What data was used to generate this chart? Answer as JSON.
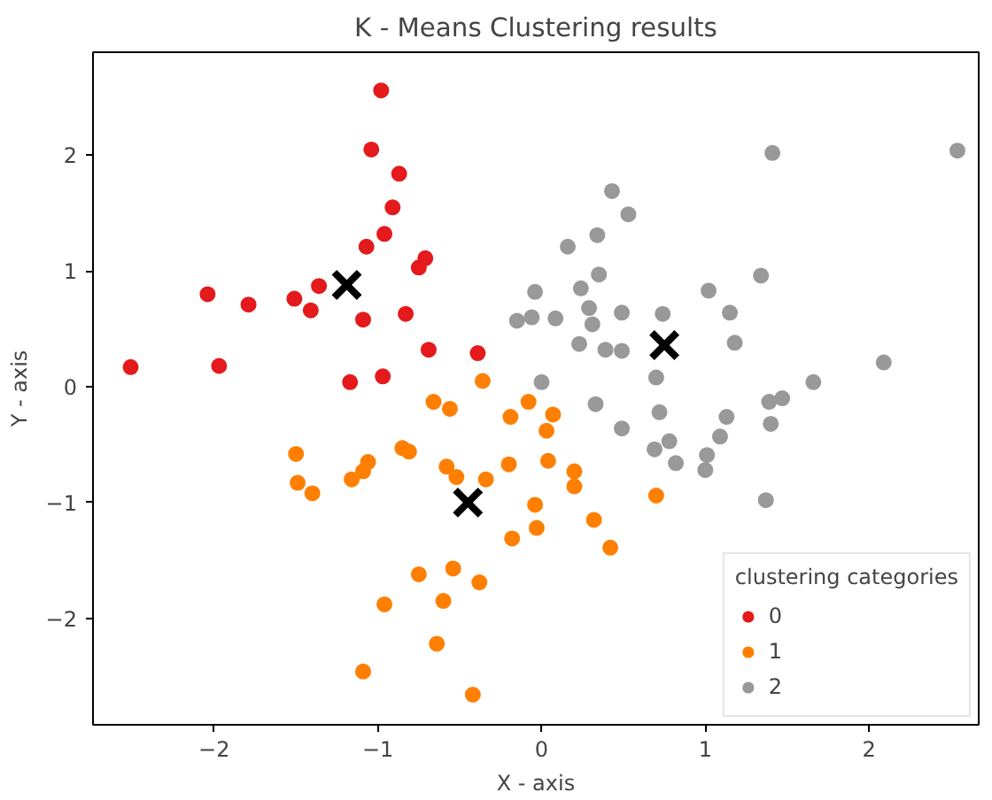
{
  "chart_data": {
    "type": "scatter",
    "title": "K - Means Clustering results",
    "xlabel": "X - axis",
    "ylabel": "Y - axis",
    "legend_title": "clustering categories",
    "legend": "bottom right",
    "grid": false,
    "marker": "circle",
    "xlim": [
      -2.74,
      2.67
    ],
    "ylim": [
      -2.92,
      2.89
    ],
    "xticks": [
      -2,
      -1,
      0,
      1,
      2
    ],
    "yticks": [
      -2,
      -1,
      0,
      1,
      2
    ],
    "series": [
      {
        "name": "0",
        "color": "#e41a1c",
        "x": [
          -0.98,
          -1.04,
          -0.87,
          -0.91,
          -0.96,
          -1.07,
          -0.71,
          -0.75,
          -2.04,
          -1.79,
          -1.51,
          -1.36,
          -1.41,
          -1.09,
          -0.83,
          -2.51,
          -1.97,
          -0.69,
          -0.39,
          -1.17,
          -0.97
        ],
        "values": [
          2.56,
          2.05,
          1.84,
          1.55,
          1.32,
          1.21,
          1.11,
          1.03,
          0.8,
          0.71,
          0.76,
          0.87,
          0.66,
          0.58,
          0.63,
          0.17,
          0.18,
          0.32,
          0.29,
          0.04,
          0.09
        ]
      },
      {
        "name": "1",
        "color": "#ff7f00",
        "x": [
          -0.08,
          -0.19,
          0.07,
          0.03,
          -0.2,
          0.04,
          0.2,
          0.2,
          0.7,
          -0.04,
          -0.18,
          -0.03,
          0.32,
          0.42,
          -0.36,
          -0.66,
          -0.56,
          -1.5,
          -1.06,
          -1.09,
          -1.16,
          -0.85,
          -0.81,
          -1.49,
          -1.4,
          -0.58,
          -0.52,
          -0.34,
          -0.75,
          -0.54,
          -0.38,
          -0.96,
          -0.6,
          -0.64,
          -1.09,
          -0.42
        ],
        "values": [
          -0.13,
          -0.26,
          -0.24,
          -0.38,
          -0.67,
          -0.64,
          -0.73,
          -0.86,
          -0.94,
          -1.02,
          -1.31,
          -1.22,
          -1.15,
          -1.39,
          0.05,
          -0.13,
          -0.19,
          -0.58,
          -0.65,
          -0.73,
          -0.8,
          -0.53,
          -0.56,
          -0.83,
          -0.92,
          -0.69,
          -0.78,
          -0.8,
          -1.62,
          -1.57,
          -1.69,
          -1.88,
          -1.85,
          -2.22,
          -2.46,
          -2.66
        ]
      },
      {
        "name": "2",
        "color": "#999999",
        "x": [
          1.41,
          2.54,
          0.43,
          0.53,
          0.34,
          0.16,
          0.35,
          1.34,
          -0.04,
          0.24,
          1.02,
          0.29,
          0.49,
          0.74,
          1.15,
          -0.15,
          -0.09,
          -0.06,
          0.085,
          0.31,
          0.23,
          0.39,
          0.49,
          1.18,
          2.09,
          0.7,
          1.66,
          0.0,
          1.39,
          1.47,
          0.33,
          0.72,
          1.13,
          0.49,
          1.4,
          0.69,
          0.78,
          1.09,
          0.82,
          1.01,
          1.0,
          1.37
        ],
        "values": [
          2.02,
          2.04,
          1.69,
          1.49,
          1.31,
          1.21,
          0.97,
          0.96,
          0.82,
          0.85,
          0.83,
          0.68,
          0.64,
          0.63,
          0.64,
          0.57,
          null,
          0.6,
          0.59,
          0.54,
          0.37,
          0.32,
          0.31,
          0.38,
          0.21,
          0.08,
          0.04,
          0.04,
          -0.13,
          -0.1,
          -0.15,
          -0.22,
          -0.26,
          -0.36,
          -0.32,
          -0.54,
          -0.47,
          -0.43,
          -0.66,
          -0.59,
          -0.72,
          -0.98
        ]
      },
      {
        "color": "#000000",
        "marker": "cross",
        "x": [
          -1.19,
          -0.45,
          0.75
        ],
        "values": [
          0.88,
          -1.0,
          0.36
        ]
      }
    ]
  }
}
